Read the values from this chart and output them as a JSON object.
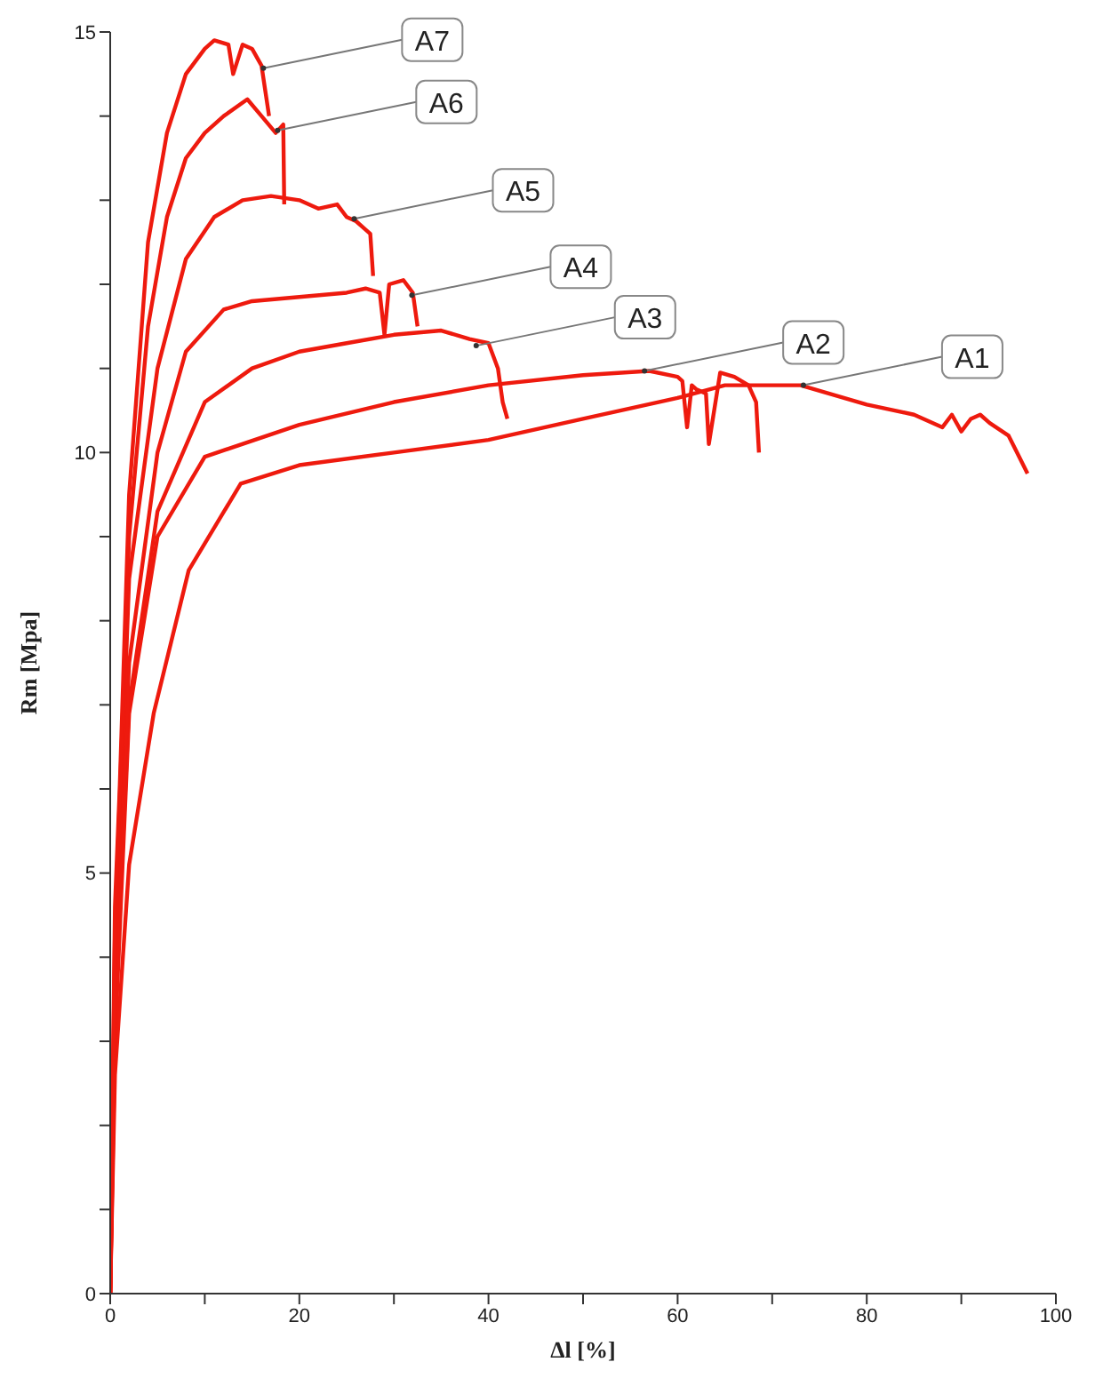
{
  "chart_data": {
    "type": "line",
    "xlabel": "Δl [%]",
    "ylabel": "Rm [Mpa]",
    "xlim": [
      0,
      100
    ],
    "ylim": [
      0,
      15
    ],
    "xticks": [
      0,
      {
        "value": 10,
        "label": null
      },
      20,
      {
        "value": 30,
        "label": null
      },
      40,
      {
        "value": 50,
        "label": null
      },
      60,
      {
        "value": 70,
        "label": null
      },
      80,
      {
        "value": 90,
        "label": null
      },
      100
    ],
    "yticks": [
      0,
      {
        "value": 1,
        "label": null
      },
      {
        "value": 2,
        "label": null
      },
      {
        "value": 3,
        "label": null
      },
      {
        "value": 4,
        "label": null
      },
      5,
      {
        "value": 6,
        "label": null
      },
      {
        "value": 7,
        "label": null
      },
      {
        "value": 8,
        "label": null
      },
      {
        "value": 9,
        "label": null
      },
      10,
      {
        "value": 11,
        "label": null
      },
      {
        "value": 12,
        "label": null
      },
      {
        "value": 13,
        "label": null
      },
      {
        "value": 14,
        "label": null
      },
      15
    ],
    "grid": false,
    "legend": false,
    "marker": "none",
    "line_style": "solid",
    "series": [
      {
        "color": "#ee1a0e",
        "x": [
          0,
          0.5,
          2,
          4.6,
          8.3,
          13.8,
          20,
          30,
          40,
          50,
          60,
          65,
          73,
          80,
          85,
          88,
          89,
          90,
          91,
          92,
          93,
          95,
          97
        ],
        "values": [
          0,
          2.6,
          5.1,
          6.9,
          8.6,
          9.63,
          9.85,
          10.0,
          10.15,
          10.4,
          10.65,
          10.8,
          10.8,
          10.57,
          10.45,
          10.3,
          10.45,
          10.25,
          10.4,
          10.45,
          10.35,
          10.2,
          9.75
        ]
      },
      {
        "color": "#ee1a0e",
        "x": [
          0,
          0.5,
          2,
          5,
          10,
          20,
          30,
          40,
          50,
          57,
          60,
          60.5,
          61,
          61.5,
          62,
          63,
          63.3,
          64.5,
          66,
          67.5,
          68.3,
          68.6
        ],
        "values": [
          0,
          3.0,
          6.9,
          9.0,
          9.95,
          10.33,
          10.6,
          10.8,
          10.92,
          10.97,
          10.9,
          10.85,
          10.3,
          10.8,
          10.75,
          10.7,
          10.1,
          10.95,
          10.9,
          10.8,
          10.6,
          10.0
        ]
      },
      {
        "color": "#ee1a0e",
        "x": [
          0,
          0.5,
          2,
          5,
          10,
          15,
          20,
          25,
          30,
          35,
          38,
          40,
          41,
          41.5,
          42
        ],
        "values": [
          0,
          3.3,
          7.0,
          9.3,
          10.6,
          11.0,
          11.2,
          11.3,
          11.4,
          11.45,
          11.35,
          11.3,
          11.0,
          10.6,
          10.4
        ]
      },
      {
        "color": "#ee1a0e",
        "x": [
          0,
          0.5,
          2,
          5,
          8,
          12,
          15,
          20,
          25,
          27,
          28.5,
          29,
          29.5,
          31,
          32,
          32.5
        ],
        "values": [
          0,
          3.6,
          7.5,
          10.0,
          11.2,
          11.7,
          11.8,
          11.85,
          11.9,
          11.95,
          11.9,
          11.4,
          12.0,
          12.05,
          11.9,
          11.5
        ]
      },
      {
        "color": "#ee1a0e",
        "x": [
          0,
          0.5,
          2,
          5,
          8,
          11,
          14,
          17,
          20,
          22,
          24,
          25,
          26,
          27.5,
          27.8
        ],
        "values": [
          0,
          4.0,
          8.5,
          11.0,
          12.3,
          12.8,
          13.0,
          13.05,
          13.0,
          12.9,
          12.95,
          12.8,
          12.75,
          12.6,
          12.1
        ]
      },
      {
        "color": "#ee1a0e",
        "x": [
          0,
          0.5,
          2,
          4,
          6,
          8,
          10,
          12,
          14.5,
          16,
          17.5,
          18.3,
          18.4
        ],
        "values": [
          0,
          4.3,
          9.0,
          11.5,
          12.8,
          13.5,
          13.8,
          14.0,
          14.2,
          14.0,
          13.8,
          13.9,
          12.95
        ]
      },
      {
        "color": "#ee1a0e",
        "x": [
          0,
          0.5,
          1,
          2,
          4,
          6,
          8,
          10,
          11,
          12.5,
          13,
          14,
          15,
          16,
          16.8
        ],
        "values": [
          0,
          4.6,
          6.0,
          9.5,
          12.5,
          13.8,
          14.5,
          14.8,
          14.9,
          14.85,
          14.5,
          14.85,
          14.8,
          14.6,
          14.0
        ]
      }
    ],
    "annotations": [
      {
        "text": "A1",
        "x": 73.3,
        "y": 10.8
      },
      {
        "text": "A2",
        "x": 56.5,
        "y": 10.97
      },
      {
        "text": "A3",
        "x": 38.7,
        "y": 11.27
      },
      {
        "text": "A4",
        "x": 31.9,
        "y": 11.87
      },
      {
        "text": "A5",
        "x": 25.8,
        "y": 12.78
      },
      {
        "text": "A6",
        "x": 17.7,
        "y": 13.83
      },
      {
        "text": "A7",
        "x": 16.2,
        "y": 14.57
      }
    ]
  }
}
